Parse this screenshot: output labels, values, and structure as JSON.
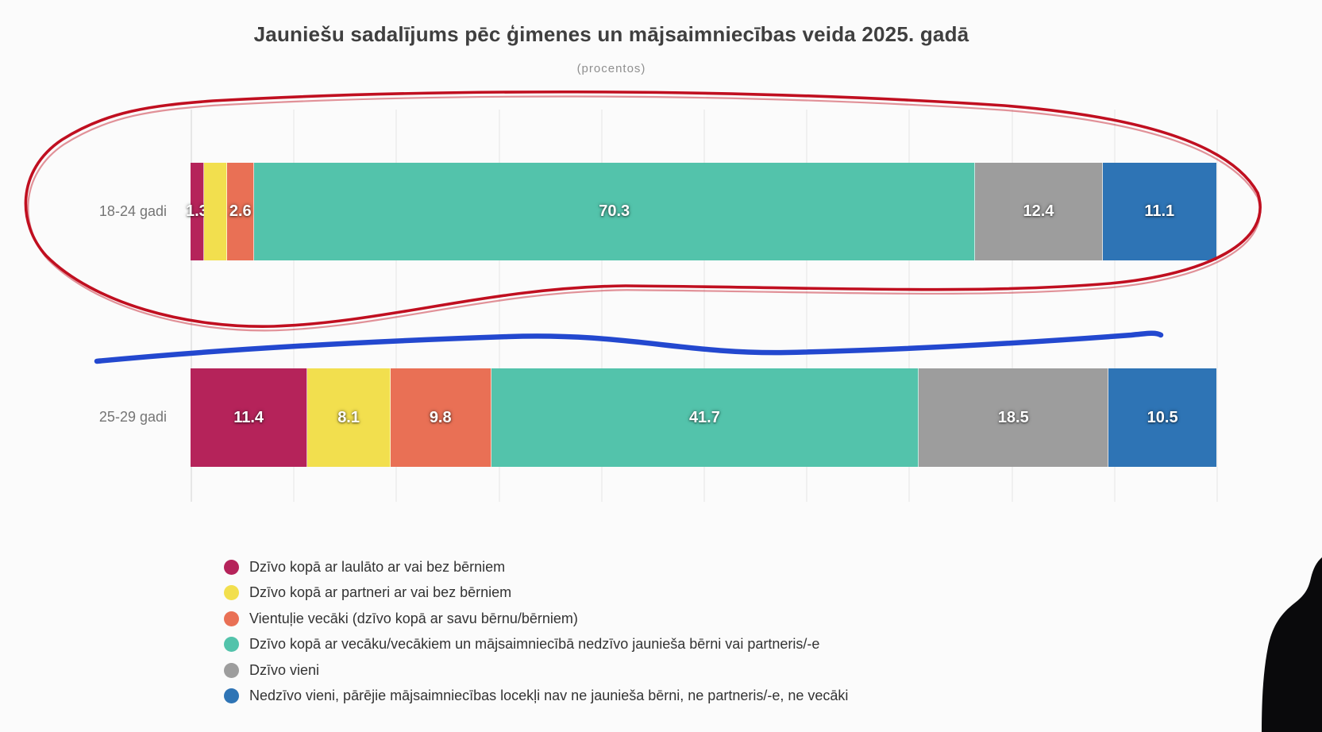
{
  "title": "Jauniešu sadalījums pēc ģimenes un mājsaimniecības veida 2025. gadā",
  "subtitle": "(procentos)",
  "colors": {
    "background": "#fbfbfb",
    "title_text": "#3f3f3f",
    "subtitle_text": "#8f8f8f",
    "category_label_text": "#757575",
    "value_label_text": "#ffffff",
    "legend_text": "#333333",
    "series_married": "#b5235a",
    "series_partner": "#f2df4e",
    "series_single_parent": "#e97055",
    "series_with_parents": "#53c3ab",
    "series_alone": "#9d9d9d",
    "series_other": "#2e74b5",
    "annotation_red": "#c00f20",
    "annotation_blue": "#2348cf",
    "silhouette_black": "#0a0a0c"
  },
  "chart_data": {
    "type": "bar",
    "stacked": true,
    "orientation": "horizontal",
    "unit": "percent",
    "title": "Jauniešu sadalījums pēc ģimenes un mājsaimniecības veida 2025. gadā",
    "subtitle": "(procentos)",
    "xlim": [
      0,
      100
    ],
    "gridline_step": 10,
    "grid": "vertical, faint",
    "legend_position": "bottom-left",
    "categories": [
      "18-24 gadi",
      "25-29 gadi"
    ],
    "series": [
      {
        "name": "Dzīvo kopā ar laulāto ar vai bez bērniem",
        "color": "#b5235a",
        "values": [
          1.3,
          11.4
        ]
      },
      {
        "name": "Dzīvo kopā ar partneri ar vai bez bērniem",
        "color": "#f2df4e",
        "values": [
          2.3,
          8.1
        ]
      },
      {
        "name": "Vientuļie vecāki (dzīvo kopā ar savu bērnu/bērniem)",
        "color": "#e97055",
        "values": [
          2.6,
          9.8
        ]
      },
      {
        "name": "Dzīvo kopā ar vecāku/vecākiem un mājsaimniecībā nedzīvo jaunieša bērni vai partneris/-e",
        "color": "#53c3ab",
        "values": [
          70.3,
          41.7
        ]
      },
      {
        "name": "Dzīvo vieni",
        "color": "#9d9d9d",
        "values": [
          12.4,
          18.5
        ]
      },
      {
        "name": "Nedzīvo vieni, pārējie mājsaimniecības locekļi nav ne jaunieša bērni, ne partneris/-e, ne vecāki",
        "color": "#2e74b5",
        "values": [
          11.1,
          10.5
        ]
      }
    ],
    "visible_value_labels": [
      [
        "1.3",
        "",
        "2.6",
        "70.3",
        "12.4",
        "11.1"
      ],
      [
        "11.4",
        "8.1",
        "9.8",
        "41.7",
        "18.5",
        "10.5"
      ]
    ],
    "note": "Yellow segment of the 18-24 gadi bar has no visible label; its value (~2.3) is estimated from segment width so the row totals 100."
  },
  "annotations": {
    "red_ellipse": "hand-drawn red ellipse circling the 18-24 gadi bar",
    "blue_underline": "hand-drawn blue line drawn between the two bars",
    "silhouette": "black silhouette of a person overlapping the bottom-right corner"
  }
}
